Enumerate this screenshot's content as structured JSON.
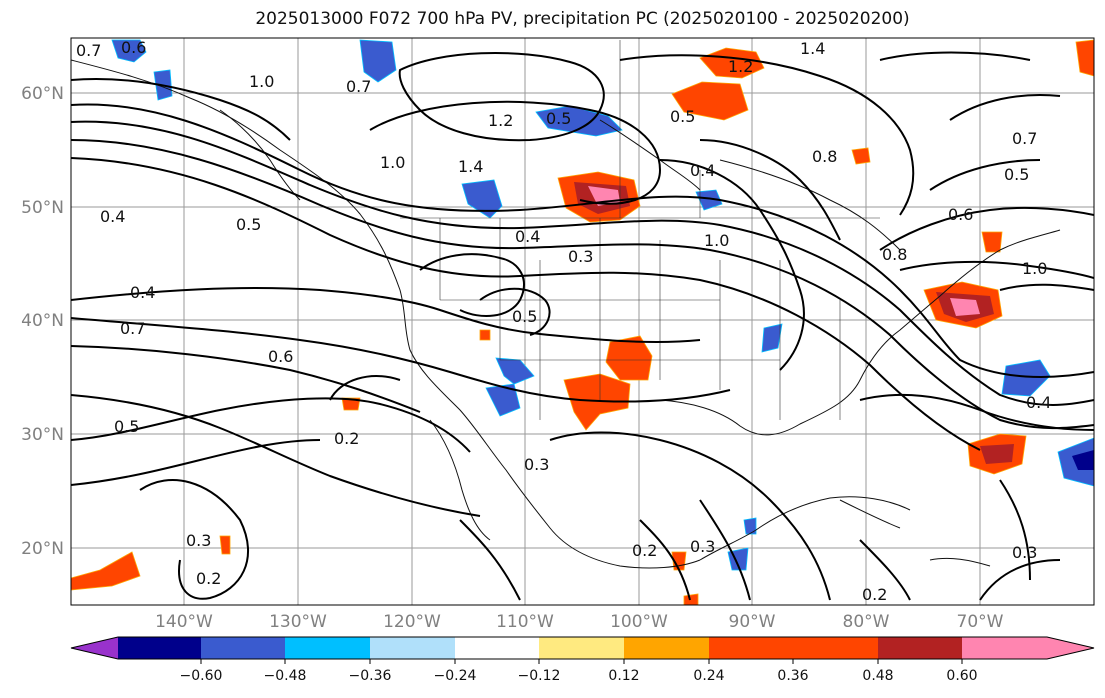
{
  "title": "2025013000 F072 700 hPa PV, precipitation PC (2025020100 - 2025020200)",
  "lat_labels": [
    "60°N",
    "50°N",
    "40°N",
    "30°N",
    "20°N"
  ],
  "lon_labels": [
    "140°W",
    "130°W",
    "120°W",
    "110°W",
    "100°W",
    "90°W",
    "80°W",
    "70°W"
  ],
  "contour_labels": [
    "0.7",
    "0.6",
    "1.0",
    "0.7",
    "1.2",
    "1.0",
    "1.4",
    "0.5",
    "0.4",
    "0.5",
    "0.4",
    "0.7",
    "0.6",
    "0.5",
    "0.2",
    "0.3",
    "0.2",
    "0.4",
    "0.5",
    "0.3",
    "0.4",
    "0.8",
    "0.6",
    "0.7",
    "0.5",
    "0.5",
    "1.0",
    "0.8",
    "0.4",
    "0.3",
    "0.2",
    "0.2",
    "0.3",
    "1.2",
    "1.4",
    "1.0",
    "0.3"
  ],
  "colorbar": {
    "ticks": [
      "−0.60",
      "−0.48",
      "−0.36",
      "−0.24",
      "−0.12",
      "0.12",
      "0.24",
      "0.36",
      "0.48",
      "0.60"
    ],
    "colors": [
      "#9932cc",
      "#00008b",
      "#3a5bcf",
      "#00bfff",
      "#b0e0fa",
      "#ffffff",
      "#ffea80",
      "#ffa500",
      "#ff4500",
      "#b22222",
      "#ff85b0"
    ]
  }
}
